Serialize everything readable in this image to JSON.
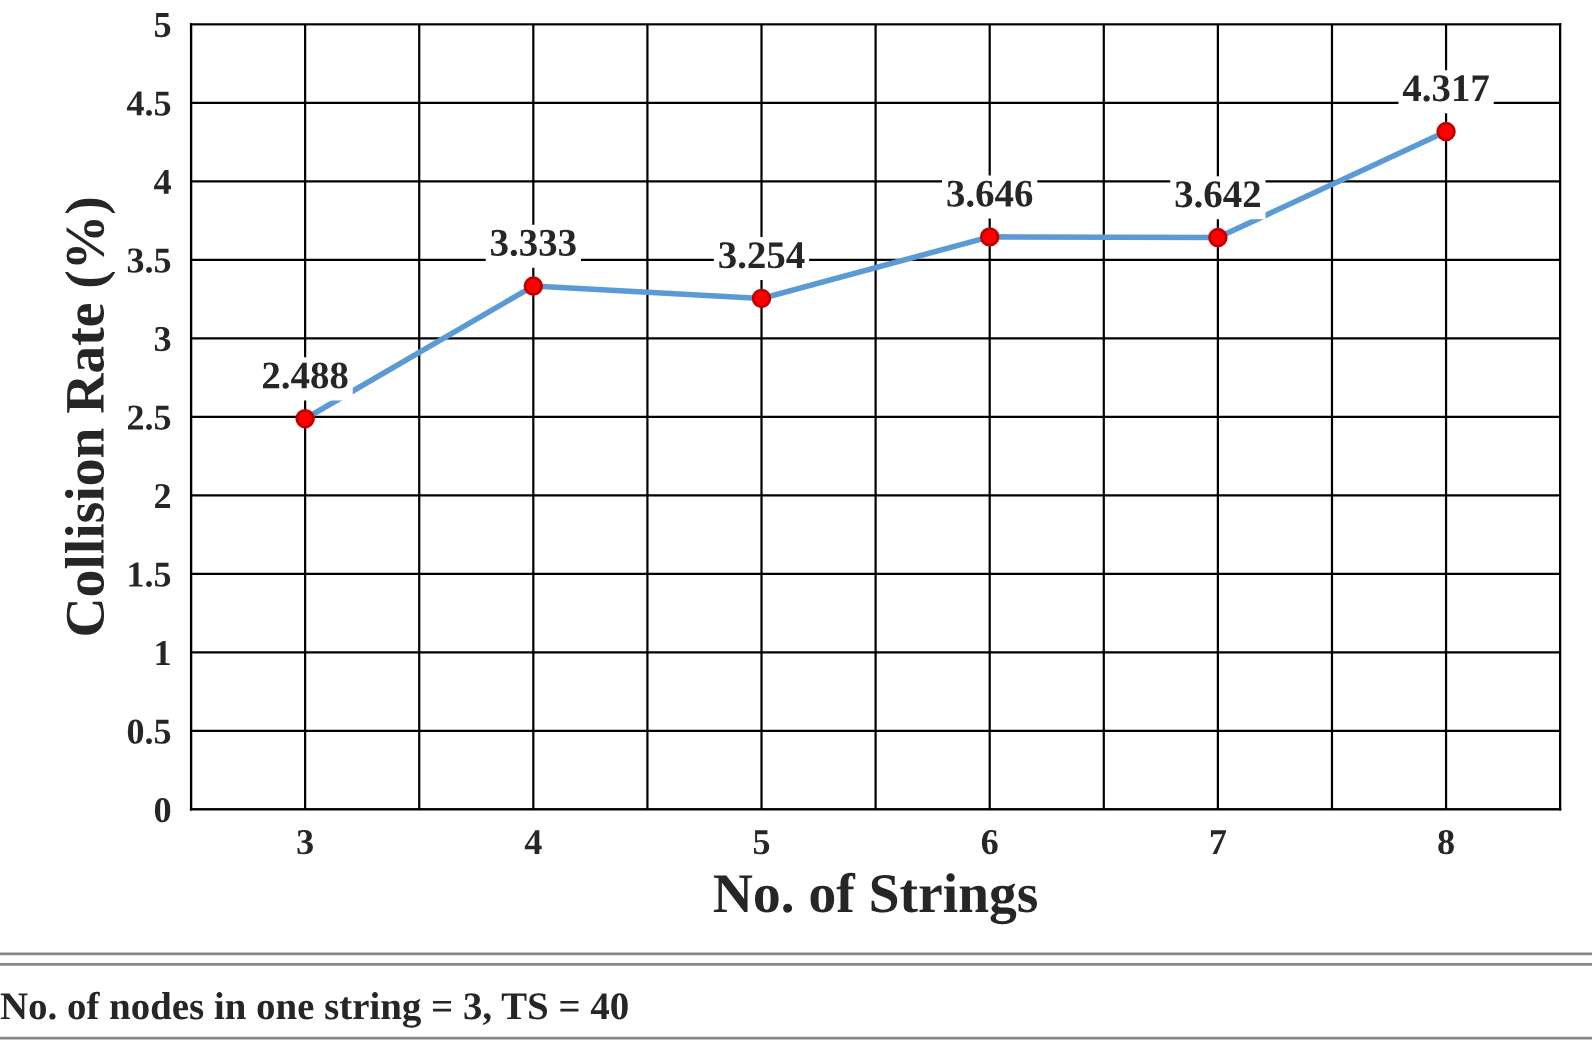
{
  "chart_data": {
    "type": "line",
    "xlabel": "No. of Strings",
    "ylabel": "Collision Rate (%)",
    "categories": [
      "3",
      "4",
      "5",
      "6",
      "7",
      "8"
    ],
    "series": [
      {
        "color": "#5b9bd5",
        "values": [
          2.488,
          3.333,
          3.254,
          3.646,
          3.642,
          4.317
        ]
      }
    ],
    "ylim": [
      0,
      5
    ],
    "yticks": [
      0,
      0.5,
      1,
      1.5,
      2,
      2.5,
      3,
      3.5,
      4,
      4.5,
      5
    ],
    "grid": true,
    "marker": "circle",
    "data_labels": true,
    "annotations": [
      "No. of nodes in one string = 3, TS = 40"
    ]
  }
}
